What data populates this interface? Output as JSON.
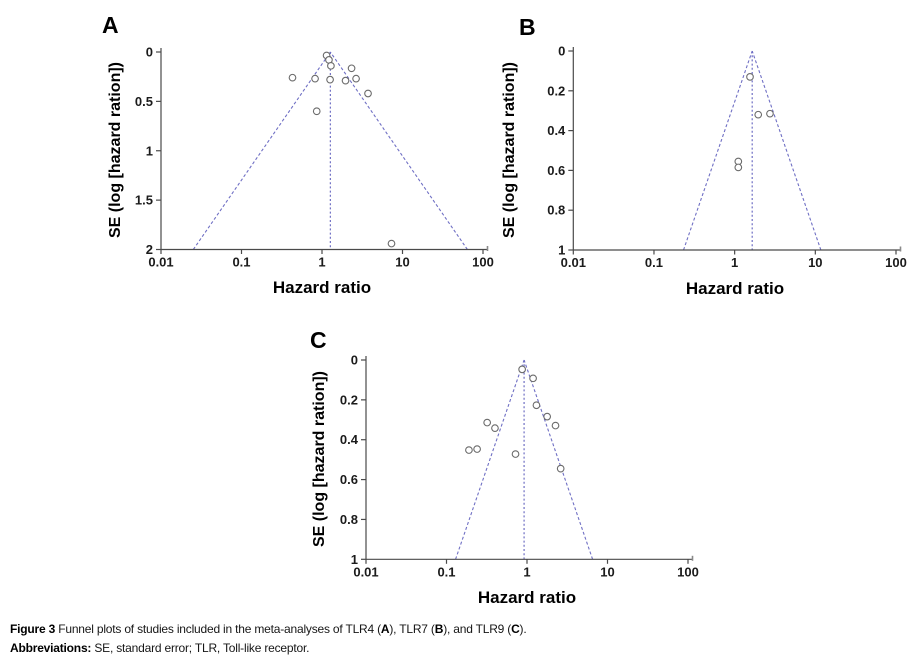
{
  "colors": {
    "funnel_line": "#6f6fc4",
    "point_stroke": "#6b6b6b",
    "point_fill": "#ffffff",
    "axis": "#4a4a4a",
    "tick_label": "#1b1b1b",
    "caption_text": "#161616"
  },
  "chart_data": [
    {
      "panel_label": "A",
      "analysis": "TLR4",
      "type": "scatter",
      "subtype": "funnel-plot",
      "xlabel": "Hazard ratio",
      "ylabel": "SE (log [hazard ration])",
      "x_scale": "log",
      "xlim": [
        0.01,
        100
      ],
      "x_ticks": [
        "0.01",
        "0.1",
        "1",
        "10",
        "100"
      ],
      "ylim": [
        0,
        2
      ],
      "y_axis_inverted": true,
      "y_ticks": [
        "0",
        "0.5",
        "1",
        "1.5",
        "2"
      ],
      "grid": false,
      "legend": false,
      "center_hazard_ratio": 1.27,
      "pseudo_ci_z": 1.96,
      "points_hr_se": [
        [
          1.14,
          0.035
        ],
        [
          1.22,
          0.08
        ],
        [
          1.29,
          0.14
        ],
        [
          2.33,
          0.165
        ],
        [
          0.43,
          0.26
        ],
        [
          0.82,
          0.27
        ],
        [
          1.26,
          0.28
        ],
        [
          1.96,
          0.29
        ],
        [
          2.65,
          0.27
        ],
        [
          3.73,
          0.42
        ],
        [
          0.86,
          0.6
        ],
        [
          7.3,
          1.94
        ]
      ]
    },
    {
      "panel_label": "B",
      "analysis": "TLR7",
      "type": "scatter",
      "subtype": "funnel-plot",
      "xlabel": "Hazard ratio",
      "ylabel": "SE (log [hazard ration])",
      "x_scale": "log",
      "xlim": [
        0.01,
        100
      ],
      "x_ticks": [
        "0.01",
        "0.1",
        "1",
        "10",
        "100"
      ],
      "ylim": [
        0,
        1
      ],
      "y_axis_inverted": true,
      "y_ticks": [
        "0",
        "0.2",
        "0.4",
        "0.6",
        "0.8",
        "1"
      ],
      "grid": false,
      "legend": false,
      "center_hazard_ratio": 1.65,
      "pseudo_ci_z": 1.96,
      "points_hr_se": [
        [
          1.55,
          0.13
        ],
        [
          1.96,
          0.32
        ],
        [
          2.74,
          0.315
        ],
        [
          1.11,
          0.555
        ],
        [
          1.11,
          0.585
        ]
      ]
    },
    {
      "panel_label": "C",
      "analysis": "TLR9",
      "type": "scatter",
      "subtype": "funnel-plot",
      "xlabel": "Hazard ratio",
      "ylabel": "SE (log [hazard ration])",
      "x_scale": "log",
      "xlim": [
        0.01,
        100
      ],
      "x_ticks": [
        "0.01",
        "0.1",
        "1",
        "10",
        "100"
      ],
      "ylim": [
        0,
        1
      ],
      "y_axis_inverted": true,
      "y_ticks": [
        "0",
        "0.2",
        "0.4",
        "0.6",
        "0.8",
        "1"
      ],
      "grid": false,
      "legend": false,
      "center_hazard_ratio": 0.92,
      "pseudo_ci_z": 1.96,
      "points_hr_se": [
        [
          0.87,
          0.047
        ],
        [
          1.19,
          0.092
        ],
        [
          1.31,
          0.227
        ],
        [
          1.78,
          0.284
        ],
        [
          2.26,
          0.329
        ],
        [
          0.32,
          0.314
        ],
        [
          0.4,
          0.342
        ],
        [
          0.19,
          0.452
        ],
        [
          0.24,
          0.447
        ],
        [
          0.72,
          0.472
        ],
        [
          2.62,
          0.545
        ]
      ]
    }
  ],
  "caption": {
    "line1_segments": [
      {
        "text": "Figure 3 ",
        "bold": true
      },
      {
        "text": "Funnel plots of studies included in the meta-analyses of TLR4 (",
        "bold": false
      },
      {
        "text": "A",
        "bold": true
      },
      {
        "text": "), TLR7 (",
        "bold": false
      },
      {
        "text": "B",
        "bold": true
      },
      {
        "text": "), and TLR9 (",
        "bold": false
      },
      {
        "text": "C",
        "bold": true
      },
      {
        "text": ").",
        "bold": false
      }
    ],
    "line2_segments": [
      {
        "text": "Abbreviations: ",
        "bold": true
      },
      {
        "text": "SE, standard error; TLR, Toll-like receptor.",
        "bold": false
      }
    ]
  }
}
